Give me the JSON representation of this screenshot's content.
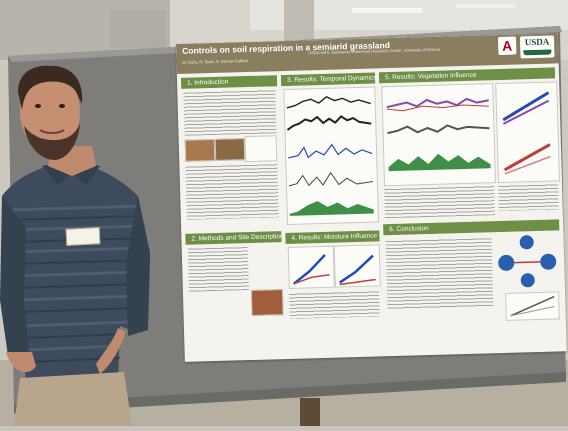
{
  "poster": {
    "title": "Controls on soil respiration in a semiarid grassland",
    "authors": "M. Roby, R. Scott, G. Barron-Gafford",
    "affiliations": "USDA-ARS, Southwest Watershed Research Center; University of Arizona",
    "logo_university": "A",
    "logo_agency": "USDA",
    "sections": {
      "intro": "1. Introduction",
      "temporal": "3. Results: Temporal Dynamics",
      "vegetation": "5. Results: Vegetation Influence",
      "methods": "2. Methods and Site Description",
      "moisture": "4. Results: Moisture Influence",
      "conclusion": "6. Conclusion"
    }
  },
  "colors": {
    "header": "#8a7e60",
    "section_bar": "#6d8f46",
    "board": "#7f7d79",
    "shirt": "#3d4b5c"
  }
}
